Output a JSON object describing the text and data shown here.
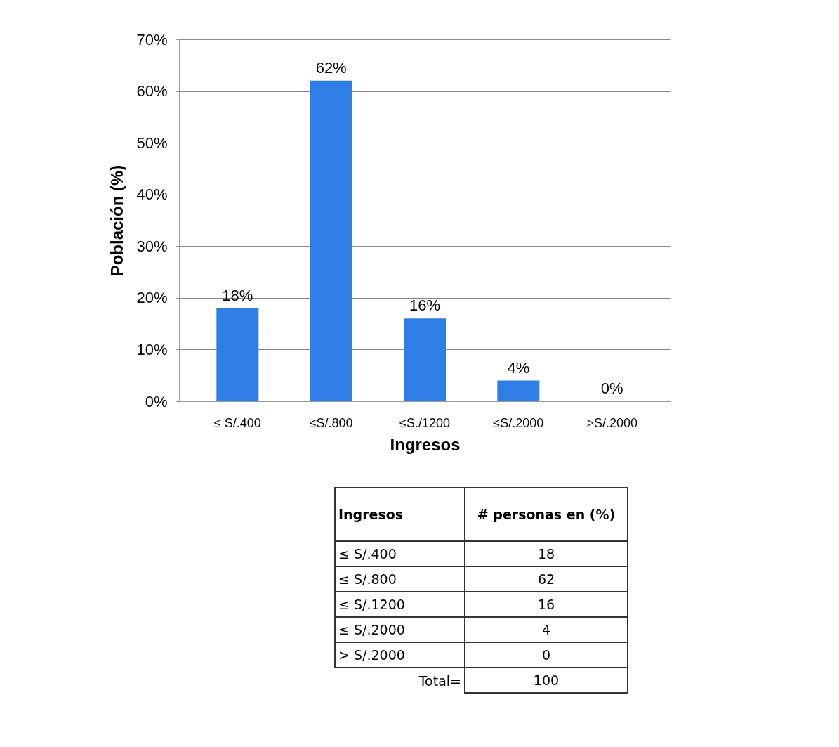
{
  "chart_data": {
    "type": "bar",
    "xlabel": "Ingresos",
    "ylabel": "Población (%)",
    "categories": [
      "≤ S/.400",
      "≤S/.800",
      "≤S./1200",
      "≤S/.2000",
      ">S/.2000"
    ],
    "values": [
      18,
      62,
      16,
      4,
      0
    ],
    "color": "#2e7ee6",
    "value_labels": [
      "18%",
      "62%",
      "16%",
      "4%",
      "0%"
    ],
    "ylim": [
      0,
      70
    ],
    "yticks": [
      {
        "value": 0,
        "label": "0%"
      },
      {
        "value": 10,
        "label": "10%"
      },
      {
        "value": 20,
        "label": "20%"
      },
      {
        "value": 30,
        "label": "30%"
      },
      {
        "value": 40,
        "label": "40%"
      },
      {
        "value": 50,
        "label": "50%"
      },
      {
        "value": 60,
        "label": "60%"
      },
      {
        "value": 70,
        "label": "70%"
      }
    ],
    "grid": "y",
    "annotations": [
      "Ingresos",
      "# personas en (%)",
      "≤ S/.400",
      "18",
      "≤ S/.800",
      "62",
      "≤ S/.1200",
      "16",
      "≤ S/.2000",
      "4",
      "> S/.2000",
      "0",
      "Total=",
      "100"
    ]
  }
}
